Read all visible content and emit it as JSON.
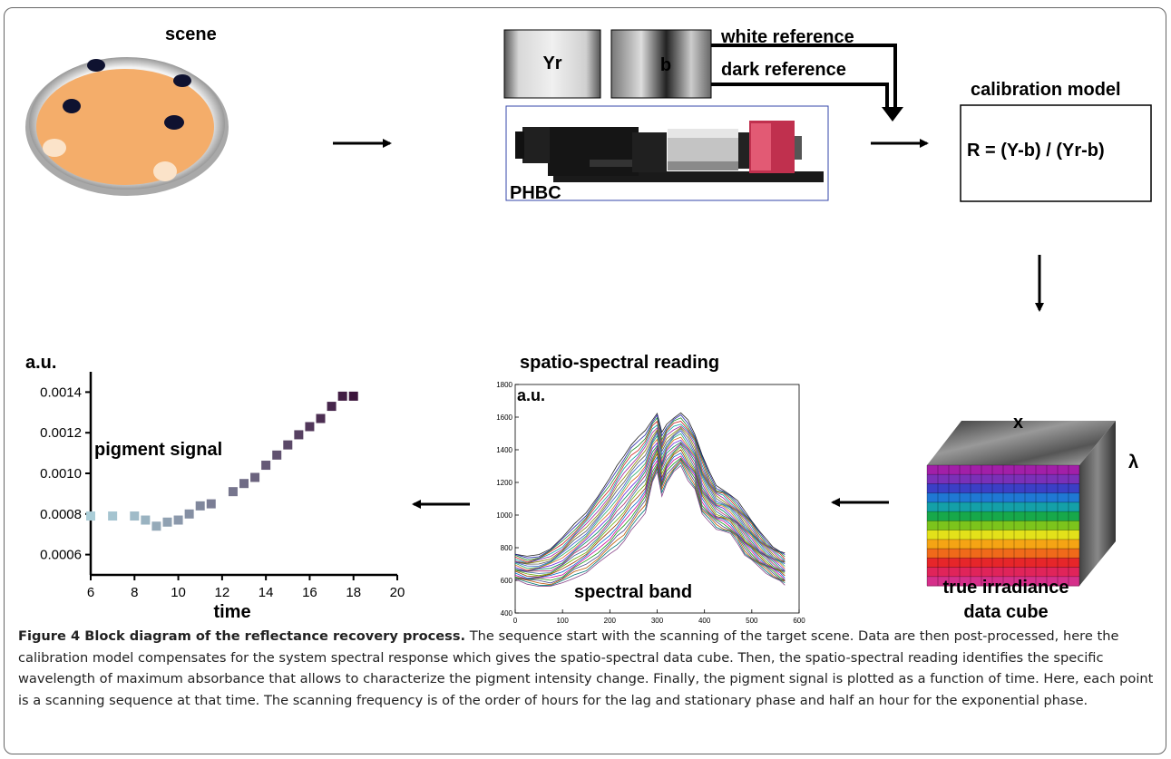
{
  "scene": {
    "label": "scene"
  },
  "camera": {
    "white_tile": "Yr",
    "dark_tile": "b",
    "white_reference": "white reference",
    "dark_reference": "dark reference",
    "device_label": "PHBC"
  },
  "calibration": {
    "title": "calibration model",
    "formula": "R = (Y-b) / (Yr-b)"
  },
  "cube": {
    "x_label": "x",
    "lambda_label": "λ",
    "label_line1": "true irradiance",
    "label_line2": "data cube"
  },
  "spectral": {
    "title": "spatio-spectral reading",
    "y_unit": "a.u.",
    "x_caption": "spectral band",
    "chart_data": {
      "type": "line",
      "xlim": [
        0,
        600
      ],
      "ylim": [
        400,
        1800
      ],
      "x_ticks": [
        0,
        100,
        200,
        300,
        400,
        500,
        600
      ],
      "y_ticks": [
        400,
        600,
        800,
        1000,
        1200,
        1400,
        1600,
        1800
      ],
      "x": [
        0,
        25,
        50,
        75,
        100,
        125,
        150,
        175,
        200,
        215,
        230,
        245,
        260,
        275,
        290,
        300,
        310,
        320,
        335,
        350,
        365,
        380,
        395,
        410,
        425,
        440,
        455,
        470,
        485,
        500,
        515,
        530,
        545,
        560,
        570
      ],
      "series_range": {
        "upper": [
          760,
          740,
          760,
          800,
          860,
          940,
          1020,
          1120,
          1220,
          1300,
          1370,
          1430,
          1470,
          1520,
          1590,
          1620,
          1500,
          1560,
          1600,
          1620,
          1580,
          1500,
          1370,
          1260,
          1180,
          1160,
          1120,
          1080,
          1030,
          970,
          900,
          850,
          810,
          780,
          760
        ],
        "lower": [
          600,
          580,
          570,
          560,
          580,
          620,
          650,
          700,
          760,
          800,
          840,
          900,
          960,
          1020,
          1200,
          1260,
          1120,
          1200,
          1260,
          1300,
          1220,
          1160,
          1000,
          960,
          920,
          900,
          880,
          830,
          760,
          720,
          680,
          650,
          620,
          590,
          570
        ]
      }
    }
  },
  "pigment": {
    "y_unit": "a.u.",
    "series_label": "pigment signal",
    "x_label": "time",
    "chart_data": {
      "type": "scatter",
      "xlim": [
        6,
        20
      ],
      "ylim": [
        0.0005,
        0.0015
      ],
      "x_ticks": [
        6,
        8,
        10,
        12,
        14,
        16,
        18,
        20
      ],
      "y_ticks": [
        "0.0006",
        "0.0008",
        "0.0010",
        "0.0012",
        "0.0014"
      ],
      "x": [
        6,
        7,
        8,
        8.5,
        9,
        9.5,
        10,
        10.5,
        11,
        11.5,
        12.5,
        13,
        13.5,
        14,
        14.5,
        15,
        15.5,
        16,
        16.5,
        17,
        17.5,
        18
      ],
      "y": [
        0.00079,
        0.00079,
        0.00079,
        0.00077,
        0.00074,
        0.00076,
        0.00077,
        0.0008,
        0.00084,
        0.00085,
        0.00091,
        0.00095,
        0.00098,
        0.00104,
        0.00109,
        0.00114,
        0.00119,
        0.00123,
        0.00127,
        0.00133,
        0.00138,
        0.00138
      ]
    }
  },
  "caption": {
    "bold_lead": "Figure 4 Block diagram of the reflectance recovery process.",
    "text": " The sequence start with the scanning of the target scene. Data are then post-processed, here the calibration model compensates for the system spectral response which gives the spatio-spectral data cube. Then, the spatio-spectral reading identifies the specific wavelength of maximum absorbance that allows to characterize the pigment intensity change. Finally, the pigment signal is plotted as a function of time. Here, each point is a scanning sequence at that time. The scanning frequency is of the order of hours for the lag and stationary phase and half an hour for the exponential phase."
  }
}
